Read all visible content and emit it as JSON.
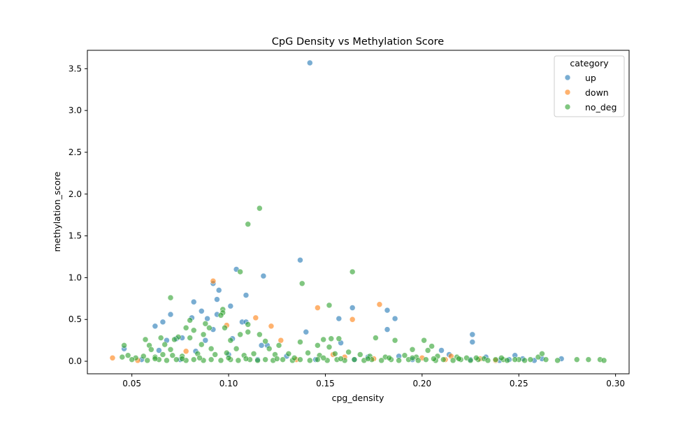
{
  "chart_data": {
    "type": "scatter",
    "title": "CpG Density vs Methylation Score",
    "xlabel": "cpg_density",
    "ylabel": "methylation_score",
    "xlim": [
      0.027,
      0.307
    ],
    "ylim": [
      -0.15,
      3.72
    ],
    "xticks": [
      0.05,
      0.1,
      0.15,
      0.2,
      0.25,
      0.3
    ],
    "xtick_labels": [
      "0.05",
      "0.10",
      "0.15",
      "0.20",
      "0.25",
      "0.30"
    ],
    "yticks": [
      0.0,
      0.5,
      1.0,
      1.5,
      2.0,
      2.5,
      3.0,
      3.5
    ],
    "ytick_labels": [
      "0.0",
      "0.5",
      "1.0",
      "1.5",
      "2.0",
      "2.5",
      "3.0",
      "3.5"
    ],
    "grid": false,
    "legend": {
      "title": "category",
      "placement": "top-right",
      "entries": [
        "up",
        "down",
        "no_deg"
      ]
    },
    "colors": {
      "up": "#1f77b4",
      "down": "#ff7f0e",
      "no_deg": "#2ca02c"
    },
    "marker_alpha": 0.6,
    "series": [
      {
        "name": "up",
        "points": [
          [
            0.142,
            3.57
          ],
          [
            0.104,
            1.1
          ],
          [
            0.137,
            1.21
          ],
          [
            0.118,
            1.02
          ],
          [
            0.092,
            0.93
          ],
          [
            0.095,
            0.85
          ],
          [
            0.109,
            0.79
          ],
          [
            0.082,
            0.71
          ],
          [
            0.094,
            0.74
          ],
          [
            0.101,
            0.66
          ],
          [
            0.086,
            0.6
          ],
          [
            0.07,
            0.56
          ],
          [
            0.094,
            0.56
          ],
          [
            0.164,
            0.64
          ],
          [
            0.182,
            0.61
          ],
          [
            0.081,
            0.52
          ],
          [
            0.089,
            0.51
          ],
          [
            0.107,
            0.47
          ],
          [
            0.109,
            0.47
          ],
          [
            0.157,
            0.51
          ],
          [
            0.186,
            0.51
          ],
          [
            0.066,
            0.47
          ],
          [
            0.062,
            0.42
          ],
          [
            0.092,
            0.38
          ],
          [
            0.14,
            0.35
          ],
          [
            0.182,
            0.38
          ],
          [
            0.226,
            0.32
          ],
          [
            0.076,
            0.28
          ],
          [
            0.102,
            0.27
          ],
          [
            0.068,
            0.25
          ],
          [
            0.073,
            0.27
          ],
          [
            0.088,
            0.25
          ],
          [
            0.158,
            0.22
          ],
          [
            0.226,
            0.23
          ],
          [
            0.046,
            0.15
          ],
          [
            0.117,
            0.19
          ],
          [
            0.12,
            0.19
          ],
          [
            0.064,
            0.13
          ],
          [
            0.083,
            0.12
          ],
          [
            0.21,
            0.13
          ],
          [
            0.1,
            0.08
          ],
          [
            0.13,
            0.06
          ],
          [
            0.172,
            0.05
          ],
          [
            0.188,
            0.06
          ],
          [
            0.214,
            0.08
          ],
          [
            0.248,
            0.07
          ],
          [
            0.233,
            0.05
          ],
          [
            0.252,
            0.03
          ],
          [
            0.262,
            0.03
          ],
          [
            0.272,
            0.03
          ],
          [
            0.055,
            0.02
          ],
          [
            0.075,
            0.02
          ],
          [
            0.115,
            0.02
          ],
          [
            0.145,
            0.02
          ],
          [
            0.165,
            0.02
          ],
          [
            0.195,
            0.02
          ],
          [
            0.225,
            0.02
          ],
          [
            0.245,
            0.02
          ],
          [
            0.258,
            0.01
          ],
          [
            0.24,
            0.01
          ]
        ]
      },
      {
        "name": "down",
        "points": [
          [
            0.04,
            0.04
          ],
          [
            0.092,
            0.96
          ],
          [
            0.146,
            0.64
          ],
          [
            0.178,
            0.68
          ],
          [
            0.114,
            0.52
          ],
          [
            0.122,
            0.42
          ],
          [
            0.164,
            0.5
          ],
          [
            0.099,
            0.43
          ],
          [
            0.127,
            0.25
          ],
          [
            0.078,
            0.12
          ],
          [
            0.154,
            0.08
          ],
          [
            0.16,
            0.05
          ],
          [
            0.2,
            0.04
          ],
          [
            0.215,
            0.06
          ],
          [
            0.23,
            0.03
          ],
          [
            0.238,
            0.01
          ],
          [
            0.053,
            0.01
          ],
          [
            0.135,
            0.02
          ],
          [
            0.175,
            0.03
          ],
          [
            0.212,
            0.02
          ]
        ]
      },
      {
        "name": "no_deg",
        "points": [
          [
            0.116,
            1.83
          ],
          [
            0.11,
            1.64
          ],
          [
            0.106,
            1.07
          ],
          [
            0.164,
            1.07
          ],
          [
            0.138,
            0.93
          ],
          [
            0.07,
            0.76
          ],
          [
            0.152,
            0.67
          ],
          [
            0.097,
            0.62
          ],
          [
            0.097,
            0.58
          ],
          [
            0.096,
            0.55
          ],
          [
            0.08,
            0.49
          ],
          [
            0.11,
            0.44
          ],
          [
            0.078,
            0.4
          ],
          [
            0.09,
            0.4
          ],
          [
            0.088,
            0.45
          ],
          [
            0.082,
            0.37
          ],
          [
            0.098,
            0.4
          ],
          [
            0.106,
            0.32
          ],
          [
            0.11,
            0.35
          ],
          [
            0.116,
            0.32
          ],
          [
            0.074,
            0.29
          ],
          [
            0.08,
            0.28
          ],
          [
            0.087,
            0.32
          ],
          [
            0.057,
            0.26
          ],
          [
            0.065,
            0.28
          ],
          [
            0.072,
            0.26
          ],
          [
            0.059,
            0.19
          ],
          [
            0.067,
            0.2
          ],
          [
            0.046,
            0.19
          ],
          [
            0.086,
            0.2
          ],
          [
            0.101,
            0.25
          ],
          [
            0.119,
            0.24
          ],
          [
            0.126,
            0.19
          ],
          [
            0.137,
            0.23
          ],
          [
            0.146,
            0.19
          ],
          [
            0.149,
            0.26
          ],
          [
            0.153,
            0.27
          ],
          [
            0.157,
            0.27
          ],
          [
            0.152,
            0.17
          ],
          [
            0.176,
            0.28
          ],
          [
            0.186,
            0.25
          ],
          [
            0.201,
            0.25
          ],
          [
            0.205,
            0.18
          ],
          [
            0.203,
            0.13
          ],
          [
            0.195,
            0.14
          ],
          [
            0.121,
            0.15
          ],
          [
            0.104,
            0.15
          ],
          [
            0.091,
            0.15
          ],
          [
            0.07,
            0.14
          ],
          [
            0.06,
            0.14
          ],
          [
            0.045,
            0.05
          ],
          [
            0.048,
            0.07
          ],
          [
            0.052,
            0.04
          ],
          [
            0.056,
            0.06
          ],
          [
            0.062,
            0.05
          ],
          [
            0.066,
            0.08
          ],
          [
            0.071,
            0.07
          ],
          [
            0.076,
            0.06
          ],
          [
            0.084,
            0.09
          ],
          [
            0.093,
            0.08
          ],
          [
            0.099,
            0.1
          ],
          [
            0.108,
            0.07
          ],
          [
            0.113,
            0.09
          ],
          [
            0.124,
            0.08
          ],
          [
            0.131,
            0.09
          ],
          [
            0.141,
            0.1
          ],
          [
            0.147,
            0.07
          ],
          [
            0.155,
            0.09
          ],
          [
            0.162,
            0.11
          ],
          [
            0.168,
            0.08
          ],
          [
            0.173,
            0.06
          ],
          [
            0.181,
            0.05
          ],
          [
            0.191,
            0.07
          ],
          [
            0.197,
            0.05
          ],
          [
            0.208,
            0.06
          ],
          [
            0.218,
            0.05
          ],
          [
            0.223,
            0.04
          ],
          [
            0.232,
            0.03
          ],
          [
            0.242,
            0.02
          ],
          [
            0.25,
            0.02
          ],
          [
            0.256,
            0.02
          ],
          [
            0.26,
            0.05
          ],
          [
            0.262,
            0.09
          ],
          [
            0.264,
            0.02
          ],
          [
            0.27,
            0.01
          ],
          [
            0.28,
            0.02
          ],
          [
            0.286,
            0.02
          ],
          [
            0.292,
            0.02
          ],
          [
            0.294,
            0.01
          ],
          [
            0.05,
            0.02
          ],
          [
            0.058,
            0.01
          ],
          [
            0.064,
            0.02
          ],
          [
            0.068,
            0.01
          ],
          [
            0.073,
            0.02
          ],
          [
            0.078,
            0.01
          ],
          [
            0.082,
            0.02
          ],
          [
            0.087,
            0.01
          ],
          [
            0.091,
            0.02
          ],
          [
            0.096,
            0.01
          ],
          [
            0.101,
            0.02
          ],
          [
            0.105,
            0.01
          ],
          [
            0.111,
            0.02
          ],
          [
            0.115,
            0.01
          ],
          [
            0.119,
            0.02
          ],
          [
            0.123,
            0.01
          ],
          [
            0.128,
            0.02
          ],
          [
            0.133,
            0.01
          ],
          [
            0.137,
            0.02
          ],
          [
            0.142,
            0.01
          ],
          [
            0.146,
            0.02
          ],
          [
            0.151,
            0.01
          ],
          [
            0.156,
            0.02
          ],
          [
            0.16,
            0.01
          ],
          [
            0.165,
            0.02
          ],
          [
            0.17,
            0.01
          ],
          [
            0.174,
            0.02
          ],
          [
            0.179,
            0.01
          ],
          [
            0.184,
            0.02
          ],
          [
            0.188,
            0.01
          ],
          [
            0.193,
            0.02
          ],
          [
            0.198,
            0.01
          ],
          [
            0.202,
            0.02
          ],
          [
            0.207,
            0.01
          ],
          [
            0.211,
            0.02
          ],
          [
            0.216,
            0.01
          ],
          [
            0.22,
            0.02
          ],
          [
            0.225,
            0.01
          ],
          [
            0.229,
            0.02
          ],
          [
            0.234,
            0.01
          ],
          [
            0.238,
            0.02
          ],
          [
            0.244,
            0.01
          ],
          [
            0.248,
            0.02
          ],
          [
            0.253,
            0.01
          ],
          [
            0.062,
            0.03
          ],
          [
            0.085,
            0.04
          ],
          [
            0.109,
            0.03
          ],
          [
            0.134,
            0.04
          ],
          [
            0.158,
            0.03
          ],
          [
            0.183,
            0.04
          ],
          [
            0.206,
            0.03
          ],
          [
            0.228,
            0.04
          ],
          [
            0.076,
            0.03
          ],
          [
            0.1,
            0.04
          ],
          [
            0.125,
            0.03
          ],
          [
            0.149,
            0.04
          ],
          [
            0.172,
            0.03
          ],
          [
            0.195,
            0.04
          ],
          [
            0.219,
            0.03
          ],
          [
            0.241,
            0.04
          ]
        ]
      }
    ]
  }
}
